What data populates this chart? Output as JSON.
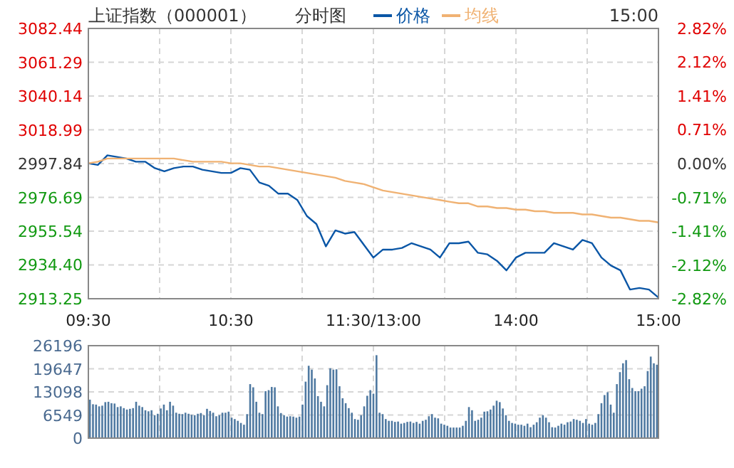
{
  "chart_data": [
    {
      "type": "line",
      "title": "上证指数（000001）",
      "subtitle": "分时图",
      "annotations": [
        "15:00"
      ],
      "legend": "top",
      "grid": true,
      "categories": [
        "09:30",
        null,
        null,
        null,
        null,
        null,
        null,
        null,
        null,
        null,
        null,
        null,
        null,
        null,
        null,
        "10:30",
        null,
        null,
        null,
        null,
        null,
        null,
        null,
        null,
        null,
        null,
        null,
        null,
        null,
        null,
        "11:30/13:00",
        null,
        null,
        null,
        null,
        null,
        null,
        null,
        null,
        null,
        null,
        null,
        null,
        null,
        null,
        "14:00",
        null,
        null,
        null,
        null,
        null,
        null,
        null,
        null,
        null,
        null,
        null,
        null,
        null,
        null,
        "15:00"
      ],
      "series": [
        {
          "name": "价格",
          "color": "#0a56a6",
          "values": [
            2998,
            2997,
            3003,
            3002,
            3001,
            2999,
            2999,
            2995,
            2993,
            2995,
            2996,
            2996,
            2994,
            2993,
            2992,
            2992,
            2995,
            2994,
            2986,
            2984,
            2979,
            2979,
            2975,
            2965,
            2960,
            2946,
            2956,
            2954,
            2955,
            2947,
            2939,
            2944,
            2944,
            2945,
            2948,
            2946,
            2944,
            2939,
            2948,
            2948,
            2949,
            2942,
            2941,
            2937,
            2931,
            2939,
            2942,
            2942,
            2942,
            2948,
            2946,
            2944,
            2950,
            2948,
            2939,
            2934,
            2931,
            2919,
            2920,
            2919,
            2914
          ]
        },
        {
          "name": "均线",
          "color": "#f0b273",
          "values": [
            2998,
            2999,
            3001,
            3001,
            3001,
            3001,
            3001,
            3001,
            3001,
            3001,
            3000,
            2999,
            2999,
            2999,
            2999,
            2998,
            2998,
            2997,
            2996,
            2996,
            2995,
            2994,
            2993,
            2992,
            2991,
            2990,
            2989,
            2987,
            2986,
            2985,
            2983,
            2981,
            2980,
            2979,
            2978,
            2977,
            2976,
            2975,
            2974,
            2973,
            2973,
            2971,
            2971,
            2970,
            2970,
            2969,
            2969,
            2968,
            2968,
            2967,
            2967,
            2967,
            2966,
            2966,
            2965,
            2964,
            2964,
            2963,
            2962,
            2962,
            2961
          ]
        }
      ],
      "ylim": [
        2913.25,
        3082.44
      ],
      "yticks": [
        3082.44,
        3061.29,
        3040.14,
        3018.99,
        2997.84,
        2976.69,
        2955.54,
        {
          "value": 2934.4,
          "label": "2934.40"
        },
        2913.25
      ],
      "y2lim": [
        -2.82,
        2.82
      ],
      "y2ticks": [
        {
          "value": 2.82,
          "label": "2.82%"
        },
        {
          "value": 2.12,
          "label": "2.12%"
        },
        {
          "value": 1.41,
          "label": "1.41%"
        },
        {
          "value": 0.71,
          "label": "0.71%"
        },
        {
          "value": 0,
          "label": "0.00%"
        },
        {
          "value": -0.71,
          "label": "-0.71%"
        },
        {
          "value": -1.41,
          "label": "-1.41%"
        },
        {
          "value": -2.12,
          "label": "-2.12%"
        },
        {
          "value": -2.82,
          "label": "-2.82%"
        }
      ]
    },
    {
      "type": "bar",
      "color": "#4f79a1",
      "grid": true,
      "categories": [
        null,
        null,
        null,
        null,
        null,
        null,
        null,
        null,
        null,
        null,
        null,
        null,
        null,
        null,
        null,
        null,
        null,
        null,
        null,
        null,
        null,
        null,
        null,
        null,
        null,
        null,
        null,
        null,
        null,
        null,
        null,
        null,
        null,
        null,
        null,
        null,
        null,
        null,
        null,
        null,
        null,
        null,
        null,
        null,
        null,
        null,
        null,
        null,
        null,
        null,
        null,
        null,
        null,
        null,
        null,
        null,
        null,
        null,
        null,
        null,
        null,
        null,
        null,
        null,
        null,
        null,
        null,
        null,
        null,
        null,
        null,
        null,
        null,
        null,
        null,
        null,
        null,
        null,
        null,
        null,
        null,
        null,
        null,
        null,
        null,
        null,
        null,
        null,
        null,
        null,
        null,
        null,
        null,
        null,
        null,
        null,
        null,
        null,
        null,
        null,
        null,
        null,
        null,
        null,
        null,
        null,
        null,
        null,
        null,
        null,
        null,
        null,
        null,
        null,
        null,
        null,
        null,
        null,
        null,
        null,
        null,
        null,
        null,
        null,
        null,
        null,
        null,
        null,
        null,
        null,
        null,
        null,
        null,
        null,
        null,
        null,
        null,
        null,
        null,
        null,
        null,
        null,
        null,
        null,
        null,
        null,
        null,
        null,
        null,
        null,
        null,
        null,
        null,
        null,
        null,
        null,
        null,
        null,
        null,
        null,
        null,
        null,
        null,
        null,
        null,
        null,
        null,
        null,
        null,
        null,
        null,
        null,
        null,
        null,
        null,
        null,
        null,
        null,
        null,
        null,
        null,
        null,
        null,
        null,
        null
      ],
      "values": [
        10900,
        9600,
        9500,
        9000,
        9200,
        10200,
        10300,
        9900,
        9800,
        8800,
        9000,
        8500,
        8100,
        8300,
        8500,
        10300,
        9200,
        8800,
        7900,
        7600,
        7900,
        6500,
        6900,
        8400,
        9500,
        7900,
        10300,
        9200,
        7200,
        6900,
        6800,
        7200,
        6900,
        6600,
        6500,
        6900,
        7100,
        6500,
        8300,
        7700,
        7200,
        6200,
        6500,
        7200,
        7200,
        7500,
        5800,
        5400,
        4900,
        4300,
        3800,
        6800,
        15300,
        14400,
        10300,
        7200,
        6800,
        13300,
        13600,
        14500,
        14400,
        9000,
        7100,
        6500,
        6100,
        6200,
        6100,
        5800,
        6100,
        9500,
        16000,
        20500,
        19400,
        16900,
        11900,
        10300,
        9000,
        15000,
        19800,
        19400,
        19500,
        14700,
        11300,
        9900,
        8500,
        7200,
        5400,
        5200,
        6500,
        9000,
        12000,
        13600,
        12600,
        23500,
        7200,
        6800,
        5400,
        4900,
        4900,
        4600,
        4700,
        4100,
        4300,
        4600,
        4700,
        4300,
        4600,
        4100,
        4900,
        5200,
        6200,
        6800,
        5800,
        5600,
        4100,
        3800,
        3500,
        3000,
        3000,
        3000,
        3000,
        3500,
        4900,
        8800,
        7900,
        4900,
        5200,
        5800,
        7500,
        7600,
        8100,
        9200,
        10600,
        10200,
        8400,
        6500,
        4900,
        4300,
        4100,
        3800,
        3800,
        3500,
        4100,
        3100,
        3800,
        4500,
        5800,
        6500,
        5800,
        4500,
        3100,
        3000,
        3500,
        4100,
        3800,
        4500,
        4700,
        5400,
        5200,
        4900,
        4300,
        5400,
        4100,
        3800,
        4300,
        6800,
        9900,
        12200,
        13000,
        9500,
        7200,
        15300,
        18700,
        21200,
        22100,
        16700,
        14200,
        13300,
        13300,
        14000,
        14700,
        19000,
        23100,
        21200,
        20800
      ],
      "ylim": [
        0,
        26196
      ],
      "yticks": [
        26196,
        19647,
        13098,
        6549,
        0
      ]
    }
  ]
}
